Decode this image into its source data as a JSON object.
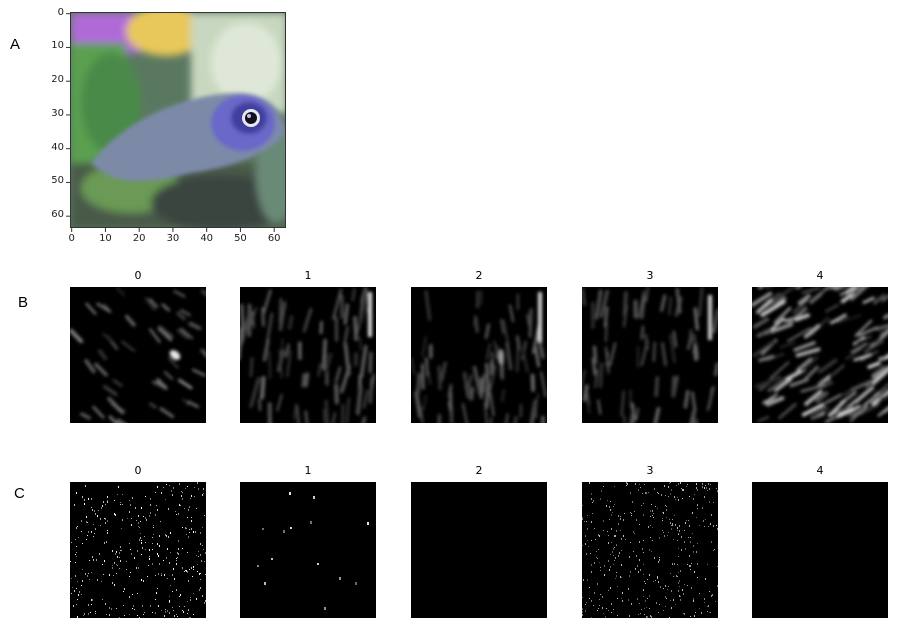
{
  "rows": {
    "a_label": "A",
    "b_label": "B",
    "c_label": "C"
  },
  "image_a": {
    "x_ticks": [
      "0",
      "10",
      "20",
      "30",
      "40",
      "50",
      "60"
    ],
    "y_ticks": [
      "0",
      "10",
      "20",
      "30",
      "40",
      "50",
      "60"
    ]
  },
  "row_b": {
    "titles": [
      "0",
      "1",
      "2",
      "3",
      "4"
    ]
  },
  "row_c": {
    "titles": [
      "0",
      "1",
      "2",
      "3",
      "4"
    ]
  }
}
